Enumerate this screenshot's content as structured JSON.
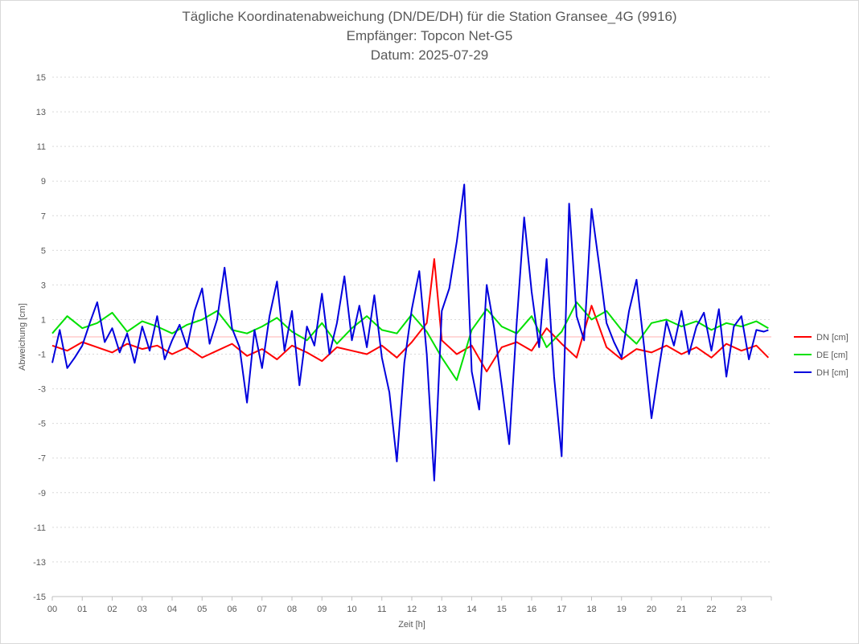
{
  "chart_data": {
    "type": "line",
    "title": "Tägliche Koordinatenabweichung (DN/DE/DH) für die Station Gransee_4G (9916)",
    "subtitle": "Empfänger: Topcon Net-G5",
    "subtitle2": "Datum: 2025-07-29",
    "xlabel": "Zeit [h]",
    "ylabel": "Abweichung [cm]",
    "ylim": [
      -15,
      15
    ],
    "yticks": [
      "15",
      "13",
      "11",
      "9",
      "7",
      "5",
      "3",
      "1",
      "-1",
      "-3",
      "-5",
      "-7",
      "-9",
      "-11",
      "-13",
      "-15"
    ],
    "xticks": [
      "00",
      "01",
      "02",
      "03",
      "04",
      "05",
      "06",
      "07",
      "08",
      "09",
      "10",
      "11",
      "12",
      "13",
      "14",
      "15",
      "16",
      "17",
      "18",
      "19",
      "20",
      "21",
      "22",
      "23"
    ],
    "xlim": [
      0,
      24
    ],
    "grid": true,
    "legend_position": "right",
    "series": [
      {
        "name": "DN [cm]",
        "color": "#ff0000",
        "x": [
          0,
          0.5,
          1,
          1.5,
          2,
          2.5,
          3,
          3.5,
          4,
          4.5,
          5,
          5.5,
          6,
          6.5,
          7,
          7.5,
          8,
          8.5,
          9,
          9.5,
          10,
          10.5,
          11,
          11.5,
          12,
          12.5,
          12.75,
          13,
          13.5,
          14,
          14.5,
          15,
          15.5,
          16,
          16.5,
          17,
          17.5,
          18,
          18.5,
          19,
          19.5,
          20,
          20.5,
          21,
          21.5,
          22,
          22.5,
          23,
          23.5,
          23.9
        ],
        "y": [
          -0.5,
          -0.8,
          -0.3,
          -0.6,
          -0.9,
          -0.4,
          -0.7,
          -0.5,
          -1.0,
          -0.6,
          -1.2,
          -0.8,
          -0.4,
          -1.1,
          -0.7,
          -1.3,
          -0.5,
          -0.9,
          -1.4,
          -0.6,
          -0.8,
          -1.0,
          -0.5,
          -1.2,
          -0.3,
          0.8,
          4.5,
          -0.2,
          -1.0,
          -0.5,
          -2.0,
          -0.6,
          -0.3,
          -0.8,
          0.5,
          -0.4,
          -1.2,
          1.8,
          -0.6,
          -1.3,
          -0.7,
          -0.9,
          -0.5,
          -1.0,
          -0.6,
          -1.2,
          -0.4,
          -0.8,
          -0.5,
          -1.2
        ]
      },
      {
        "name": "DE [cm]",
        "color": "#00e000",
        "x": [
          0,
          0.5,
          1,
          1.5,
          2,
          2.5,
          3,
          3.5,
          4,
          4.5,
          5,
          5.5,
          6,
          6.5,
          7,
          7.5,
          8,
          8.5,
          9,
          9.5,
          10,
          10.5,
          11,
          11.5,
          12,
          12.5,
          13,
          13.5,
          14,
          14.5,
          15,
          15.5,
          16,
          16.5,
          17,
          17.5,
          18,
          18.5,
          19,
          19.5,
          20,
          20.5,
          21,
          21.5,
          22,
          22.5,
          23,
          23.5,
          23.9
        ],
        "y": [
          0.2,
          1.2,
          0.5,
          0.8,
          1.4,
          0.3,
          0.9,
          0.6,
          0.2,
          0.7,
          1.0,
          1.5,
          0.4,
          0.2,
          0.6,
          1.1,
          0.3,
          -0.2,
          0.8,
          -0.4,
          0.5,
          1.2,
          0.4,
          0.2,
          1.3,
          0.3,
          -1.2,
          -2.5,
          0.4,
          1.6,
          0.6,
          0.2,
          1.2,
          -0.6,
          0.3,
          2.0,
          1.0,
          1.5,
          0.4,
          -0.4,
          0.8,
          1.0,
          0.6,
          0.9,
          0.4,
          0.8,
          0.6,
          0.9,
          0.5
        ]
      },
      {
        "name": "DH [cm]",
        "color": "#0000dd",
        "x": [
          0,
          0.25,
          0.5,
          0.75,
          1,
          1.25,
          1.5,
          1.75,
          2,
          2.25,
          2.5,
          2.75,
          3,
          3.25,
          3.5,
          3.75,
          4,
          4.25,
          4.5,
          4.75,
          5,
          5.25,
          5.5,
          5.75,
          6,
          6.25,
          6.5,
          6.75,
          7,
          7.25,
          7.5,
          7.75,
          8,
          8.25,
          8.5,
          8.75,
          9,
          9.25,
          9.5,
          9.75,
          10,
          10.25,
          10.5,
          10.75,
          11,
          11.25,
          11.5,
          11.75,
          12,
          12.25,
          12.5,
          12.75,
          13,
          13.25,
          13.5,
          13.75,
          14,
          14.25,
          14.5,
          14.75,
          15,
          15.25,
          15.5,
          15.75,
          16,
          16.25,
          16.5,
          16.75,
          17,
          17.25,
          17.5,
          17.75,
          18,
          18.25,
          18.5,
          18.75,
          19,
          19.25,
          19.5,
          19.75,
          20,
          20.25,
          20.5,
          20.75,
          21,
          21.25,
          21.5,
          21.75,
          22,
          22.25,
          22.5,
          22.75,
          23,
          23.25,
          23.5,
          23.75,
          23.9
        ],
        "y": [
          -1.5,
          0.4,
          -1.8,
          -1.2,
          -0.5,
          0.8,
          2.0,
          -0.3,
          0.5,
          -0.9,
          0.2,
          -1.5,
          0.6,
          -0.8,
          1.2,
          -1.3,
          -0.2,
          0.7,
          -0.6,
          1.5,
          2.8,
          -0.4,
          1.0,
          4.0,
          0.5,
          -0.6,
          -3.8,
          0.4,
          -1.8,
          1.2,
          3.2,
          -0.8,
          1.5,
          -2.8,
          0.6,
          -0.5,
          2.5,
          -1.0,
          0.8,
          3.5,
          -0.2,
          1.8,
          -0.6,
          2.4,
          -1.2,
          -3.2,
          -7.2,
          -1.5,
          1.6,
          3.8,
          -1.0,
          -8.3,
          1.5,
          2.8,
          5.5,
          8.8,
          -2.0,
          -4.2,
          3.0,
          0.5,
          -2.8,
          -6.2,
          0.8,
          6.9,
          2.6,
          -0.6,
          4.5,
          -2.3,
          -6.9,
          7.7,
          1.2,
          -0.2,
          7.4,
          4.2,
          0.8,
          -0.3,
          -1.2,
          1.5,
          3.3,
          -0.5,
          -4.7,
          -1.8,
          0.9,
          -0.5,
          1.5,
          -1.0,
          0.6,
          1.4,
          -0.8,
          1.6,
          -2.3,
          0.6,
          1.2,
          -1.3,
          0.4,
          0.3,
          0.4
        ]
      }
    ]
  }
}
